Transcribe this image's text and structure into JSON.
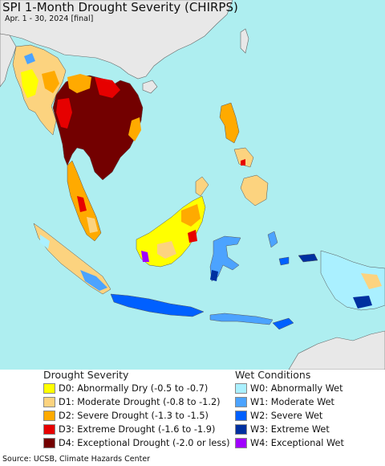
{
  "title": "SPI 1-Month Drought Severity (CHIRPS)",
  "subtitle": "Apr. 1 - 30, 2024 [final]",
  "colors": {
    "sea": "#aeeef0",
    "land": "#ffffff",
    "outside": "#e8e8e8"
  },
  "legend": {
    "drought": {
      "title": "Drought Severity",
      "items": [
        {
          "code": "D0",
          "label": "D0: Abnormally Dry (-0.5 to -0.7)",
          "color": "#ffff00"
        },
        {
          "code": "D1",
          "label": "D1: Moderate Drought (-0.8 to -1.2)",
          "color": "#fcd37f"
        },
        {
          "code": "D2",
          "label": "D2: Severe Drought (-1.3 to -1.5)",
          "color": "#ffaa00"
        },
        {
          "code": "D3",
          "label": "D3: Extreme Drought (-1.6 to -1.9)",
          "color": "#e60000"
        },
        {
          "code": "D4",
          "label": "D4: Exceptional Drought (-2.0 or less)",
          "color": "#730000"
        }
      ]
    },
    "wet": {
      "title": "Wet Conditions",
      "items": [
        {
          "code": "W0",
          "label": "W0: Abnormally Wet",
          "color": "#aaf0ff"
        },
        {
          "code": "W1",
          "label": "W1: Moderate Wet",
          "color": "#4ca3ff"
        },
        {
          "code": "W2",
          "label": "W2: Severe Wet",
          "color": "#0060ff"
        },
        {
          "code": "W3",
          "label": "W3: Extreme Wet",
          "color": "#0030a0"
        },
        {
          "code": "W4",
          "label": "W4: Exceptional Wet",
          "color": "#a000ff"
        }
      ]
    }
  },
  "source": "Source: UCSB, Climate Hazards Center"
}
